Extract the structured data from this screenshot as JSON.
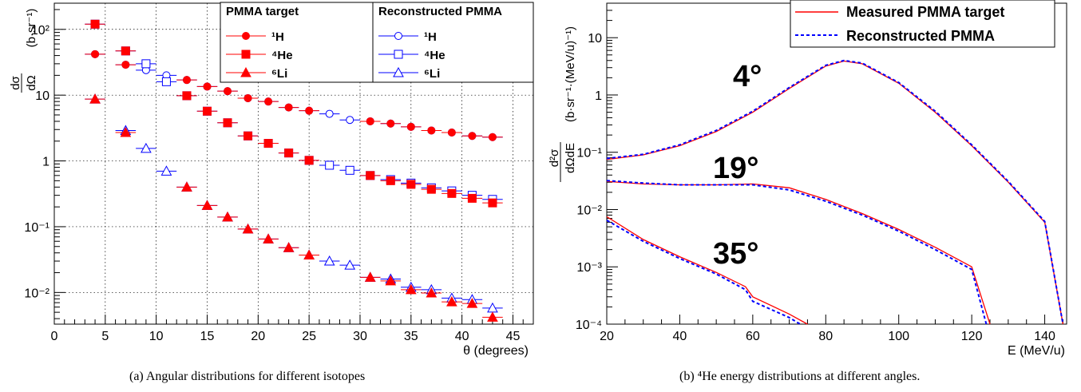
{
  "captions": {
    "left": "(a) Angular distributions for different isotopes",
    "right": "(b) ⁴He energy distributions at different angles."
  },
  "colors": {
    "measured": "#ff0000",
    "reconstructed": "#0000ff",
    "marker_fill": "#ff0000"
  },
  "chart_data": [
    {
      "type": "scatter",
      "xlabel": "θ (degrees)",
      "ylabel": "dσ/dΩ (b·sr⁻¹)",
      "yscale": "log",
      "xlim": [
        0,
        47
      ],
      "ylim": [
        0.0033,
        250
      ],
      "grid": true,
      "x_ticks": [
        "0",
        "5",
        "10",
        "15",
        "20",
        "25",
        "30",
        "35",
        "40",
        "45"
      ],
      "y_ticks": [
        "10⁻²",
        "10⁻¹",
        "1",
        "10",
        "10²"
      ],
      "legend": [
        {
          "title": "PMMA target",
          "entries": [
            "¹H",
            "⁴He",
            "⁶Li"
          ]
        },
        {
          "title": "Reconstructed PMMA",
          "entries": [
            "¹H",
            "⁴He",
            "⁶Li"
          ]
        }
      ],
      "series": [
        {
          "name": "PMMA target ¹H",
          "marker": "circle",
          "style": "filled",
          "x": [
            4,
            7,
            13,
            15,
            17,
            19,
            21,
            23,
            25,
            31,
            33,
            35,
            37,
            39,
            41,
            43
          ],
          "y": [
            42,
            29,
            17,
            13.5,
            11.5,
            9,
            8,
            6.5,
            5.8,
            4,
            3.7,
            3.3,
            2.9,
            2.7,
            2.4,
            2.3
          ]
        },
        {
          "name": "PMMA target ⁴He",
          "marker": "square",
          "style": "filled",
          "x": [
            4,
            7,
            13,
            15,
            17,
            19,
            21,
            23,
            25,
            31,
            33,
            35,
            37,
            39,
            41,
            43
          ],
          "y": [
            120,
            47,
            9.8,
            5.7,
            3.8,
            2.4,
            1.85,
            1.32,
            1.02,
            0.6,
            0.5,
            0.44,
            0.37,
            0.32,
            0.27,
            0.23
          ]
        },
        {
          "name": "PMMA target ⁶Li",
          "marker": "triangle",
          "style": "filled",
          "x": [
            4,
            7,
            13,
            15,
            17,
            19,
            21,
            23,
            25,
            31,
            33,
            35,
            37,
            39,
            41,
            43
          ],
          "y": [
            8.7,
            2.7,
            0.4,
            0.21,
            0.14,
            0.092,
            0.065,
            0.048,
            0.037,
            0.017,
            0.015,
            0.011,
            0.0098,
            0.0072,
            0.0068,
            0.0042
          ]
        },
        {
          "name": "Reconstructed PMMA ¹H",
          "marker": "circle",
          "style": "open",
          "x": [
            4,
            7,
            9,
            11,
            13,
            15,
            17,
            19,
            21,
            23,
            25,
            27,
            29,
            31,
            33,
            35,
            37,
            39,
            41,
            43
          ],
          "y": [
            42,
            29,
            24,
            20,
            17,
            13.5,
            11.5,
            9,
            8,
            6.5,
            5.8,
            5.2,
            4.2,
            4,
            3.7,
            3.3,
            2.9,
            2.7,
            2.4,
            2.3
          ]
        },
        {
          "name": "Reconstructed PMMA ⁴He",
          "marker": "square",
          "style": "open",
          "x": [
            4,
            7,
            9,
            11,
            13,
            15,
            17,
            19,
            21,
            23,
            25,
            27,
            29,
            31,
            33,
            35,
            37,
            39,
            41,
            43
          ],
          "y": [
            120,
            47,
            30,
            16,
            9.8,
            5.7,
            3.8,
            2.4,
            1.85,
            1.32,
            1.02,
            0.86,
            0.72,
            0.6,
            0.52,
            0.46,
            0.39,
            0.35,
            0.3,
            0.26
          ]
        },
        {
          "name": "Reconstructed PMMA ⁶Li",
          "marker": "triangle",
          "style": "open",
          "x": [
            4,
            7,
            9,
            11,
            13,
            15,
            17,
            19,
            21,
            23,
            25,
            27,
            29,
            31,
            33,
            35,
            37,
            39,
            41,
            43
          ],
          "y": [
            8.7,
            2.9,
            1.55,
            0.7,
            0.4,
            0.21,
            0.14,
            0.092,
            0.065,
            0.048,
            0.037,
            0.03,
            0.026,
            0.017,
            0.016,
            0.012,
            0.011,
            0.0082,
            0.0078,
            0.0058
          ]
        }
      ]
    },
    {
      "type": "line",
      "xlabel": "E (MeV/u)",
      "ylabel": "d²σ/dΩdE (b·sr⁻¹·(MeV/u)⁻¹)",
      "yscale": "log",
      "xlim": [
        20,
        146
      ],
      "ylim": [
        0.0001,
        40
      ],
      "grid": false,
      "x_ticks": [
        "20",
        "40",
        "60",
        "80",
        "100",
        "120",
        "140"
      ],
      "y_ticks": [
        "10⁻⁴",
        "10⁻³",
        "10⁻²",
        "10⁻¹",
        "1",
        "10"
      ],
      "legend": [
        "Measured PMMA target",
        "Reconstructed PMMA"
      ],
      "annotations": [
        "4°",
        "19°",
        "35°"
      ],
      "series": [
        {
          "name": "Measured PMMA target",
          "angle": "4°",
          "x": [
            20,
            30,
            40,
            50,
            60,
            70,
            80,
            85,
            90,
            100,
            110,
            120,
            130,
            140,
            145
          ],
          "y": [
            0.075,
            0.09,
            0.13,
            0.23,
            0.5,
            1.3,
            3.2,
            3.9,
            3.5,
            1.6,
            0.5,
            0.13,
            0.03,
            0.006,
            0.0001
          ]
        },
        {
          "name": "Reconstructed PMMA",
          "angle": "4°",
          "x": [
            20,
            30,
            40,
            50,
            60,
            70,
            80,
            85,
            90,
            100,
            110,
            120,
            130,
            140,
            145
          ],
          "y": [
            0.078,
            0.092,
            0.135,
            0.24,
            0.52,
            1.35,
            3.3,
            4.0,
            3.6,
            1.65,
            0.52,
            0.135,
            0.031,
            0.0062,
            0.0001
          ]
        },
        {
          "name": "Measured PMMA target",
          "angle": "19°",
          "x": [
            20,
            30,
            40,
            50,
            60,
            70,
            80,
            90,
            100,
            110,
            120,
            125
          ],
          "y": [
            0.031,
            0.028,
            0.027,
            0.027,
            0.028,
            0.024,
            0.015,
            0.0085,
            0.0045,
            0.0022,
            0.001,
            0.0001
          ]
        },
        {
          "name": "Reconstructed PMMA",
          "angle": "19°",
          "x": [
            20,
            30,
            40,
            50,
            60,
            70,
            80,
            90,
            100,
            110,
            120,
            124
          ],
          "y": [
            0.032,
            0.029,
            0.027,
            0.027,
            0.027,
            0.022,
            0.014,
            0.008,
            0.0042,
            0.002,
            0.0009,
            0.0001
          ]
        },
        {
          "name": "Measured PMMA target",
          "angle": "35°",
          "x": [
            20,
            30,
            40,
            50,
            58,
            60,
            70,
            75
          ],
          "y": [
            0.0075,
            0.003,
            0.0015,
            0.0008,
            0.00045,
            0.0003,
            0.00015,
            0.0001
          ]
        },
        {
          "name": "Reconstructed PMMA",
          "angle": "35°",
          "x": [
            20,
            30,
            40,
            50,
            58,
            60,
            70,
            73
          ],
          "y": [
            0.0065,
            0.0028,
            0.0014,
            0.00075,
            0.0004,
            0.00025,
            0.00013,
            0.0001
          ]
        }
      ]
    }
  ]
}
